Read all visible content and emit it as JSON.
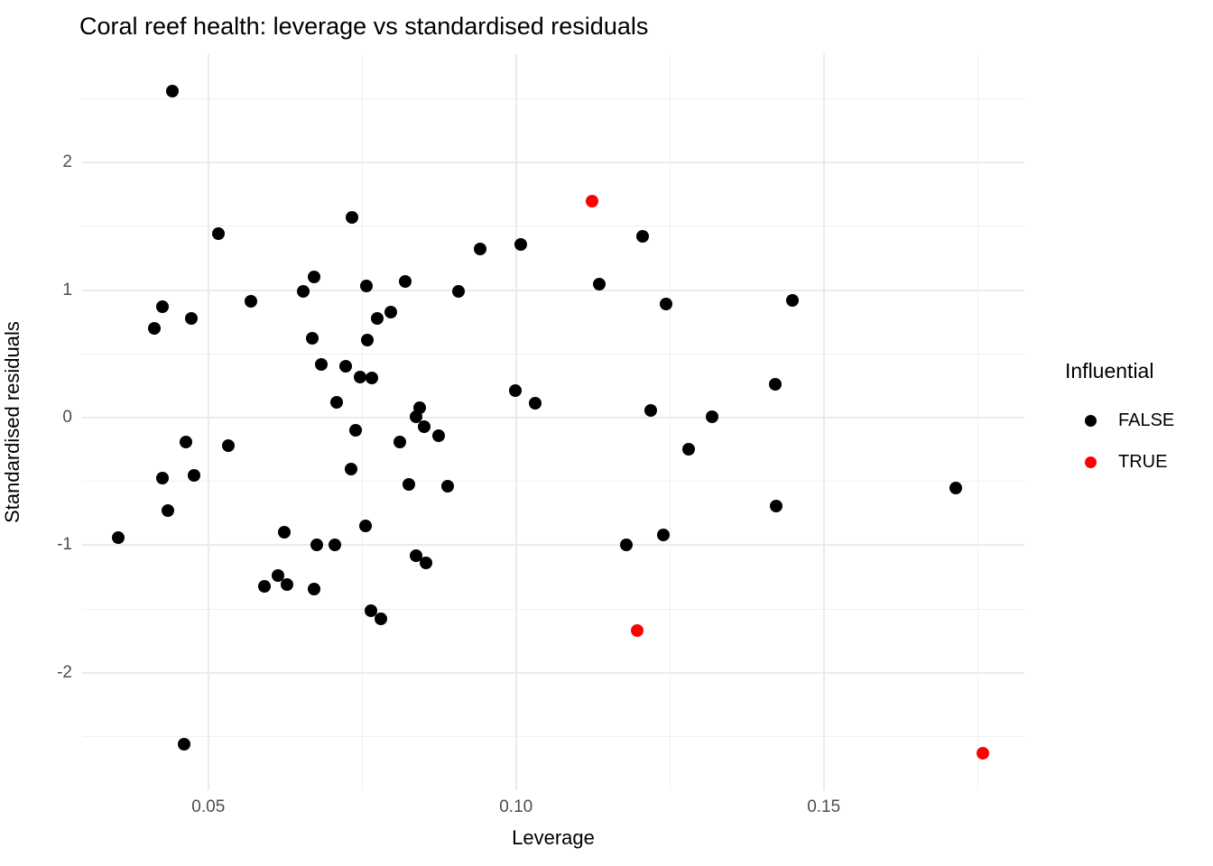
{
  "title": "Coral reef health: leverage vs standardised residuals",
  "colors": {
    "background": "#ffffff",
    "grid_major": "#ebebeb",
    "grid_minor": "#f0f0f0",
    "tick_label": "#4d4d4d",
    "text": "#000000",
    "false_point": "#000000",
    "true_point": "#ff0000"
  },
  "chart_data": {
    "type": "scatter",
    "title": "Coral reef health: leverage vs standardised residuals",
    "xlabel": "Leverage",
    "ylabel": "Standardised residuals",
    "xlim": [
      0.0295,
      0.1826
    ],
    "ylim": [
      -2.92,
      2.85
    ],
    "grid": "on",
    "x_major_ticks": [
      0.05,
      0.1,
      0.15
    ],
    "x_tick_labels": [
      "0.05",
      "0.10",
      "0.15"
    ],
    "x_minor_ticks": [
      0.075,
      0.125,
      0.175
    ],
    "y_major_ticks": [
      2,
      1,
      0,
      -1,
      -2
    ],
    "y_tick_labels": [
      "2",
      "1",
      "0",
      "-1",
      "-2"
    ],
    "y_minor_ticks": [
      2.5,
      1.5,
      0.5,
      -0.5,
      -1.5,
      -2.5
    ],
    "legend": {
      "title": "Influential",
      "position": "right",
      "entries": [
        {
          "label": "FALSE",
          "color": "#000000"
        },
        {
          "label": "TRUE",
          "color": "#ff0000"
        }
      ]
    },
    "series": [
      {
        "name": "FALSE",
        "color": "#000000",
        "points": [
          [
            0.0442,
            2.56
          ],
          [
            0.0516,
            1.44
          ],
          [
            0.0733,
            1.57
          ],
          [
            0.0672,
            1.1
          ],
          [
            0.0654,
            0.99
          ],
          [
            0.0757,
            1.03
          ],
          [
            0.0425,
            0.87
          ],
          [
            0.0569,
            0.91
          ],
          [
            0.1205,
            1.42
          ],
          [
            0.1007,
            1.36
          ],
          [
            0.0941,
            1.32
          ],
          [
            0.082,
            1.07
          ],
          [
            0.0906,
            0.99
          ],
          [
            0.1135,
            1.05
          ],
          [
            0.1244,
            0.89
          ],
          [
            0.1449,
            0.92
          ],
          [
            0.0472,
            0.78
          ],
          [
            0.0413,
            0.7
          ],
          [
            0.0669,
            0.62
          ],
          [
            0.0759,
            0.61
          ],
          [
            0.0775,
            0.78
          ],
          [
            0.0797,
            0.83
          ],
          [
            0.0683,
            0.42
          ],
          [
            0.0723,
            0.4
          ],
          [
            0.0747,
            0.32
          ],
          [
            0.0766,
            0.31
          ],
          [
            0.0708,
            0.12
          ],
          [
            0.074,
            -0.1
          ],
          [
            0.0464,
            -0.19
          ],
          [
            0.0533,
            -0.22
          ],
          [
            0.0811,
            -0.19
          ],
          [
            0.0732,
            -0.4
          ],
          [
            0.0426,
            -0.47
          ],
          [
            0.0477,
            -0.45
          ],
          [
            0.0435,
            -0.73
          ],
          [
            0.0354,
            -0.94
          ],
          [
            0.0623,
            -0.9
          ],
          [
            0.0677,
            -1.0
          ],
          [
            0.0706,
            -1.0
          ],
          [
            0.0755,
            -0.85
          ],
          [
            0.0843,
            0.08
          ],
          [
            0.0999,
            0.21
          ],
          [
            0.1031,
            0.11
          ],
          [
            0.0837,
            0.01
          ],
          [
            0.0851,
            -0.07
          ],
          [
            0.0874,
            -0.14
          ],
          [
            0.1219,
            0.06
          ],
          [
            0.128,
            -0.25
          ],
          [
            0.0826,
            -0.52
          ],
          [
            0.0889,
            -0.54
          ],
          [
            0.118,
            -1.0
          ],
          [
            0.1239,
            -0.92
          ],
          [
            0.1318,
            0.01
          ],
          [
            0.1421,
            0.26
          ],
          [
            0.1714,
            -0.55
          ],
          [
            0.1423,
            -0.69
          ],
          [
            0.0591,
            -1.32
          ],
          [
            0.0613,
            -1.24
          ],
          [
            0.0628,
            -1.31
          ],
          [
            0.0672,
            -1.34
          ],
          [
            0.0764,
            -1.51
          ],
          [
            0.0781,
            -1.58
          ],
          [
            0.0461,
            -2.56
          ],
          [
            0.0837,
            -1.08
          ],
          [
            0.0853,
            -1.14
          ]
        ]
      },
      {
        "name": "TRUE",
        "color": "#ff0000",
        "points": [
          [
            0.1123,
            1.7
          ],
          [
            0.1197,
            -1.67
          ],
          [
            0.1759,
            -2.63
          ]
        ]
      }
    ]
  }
}
